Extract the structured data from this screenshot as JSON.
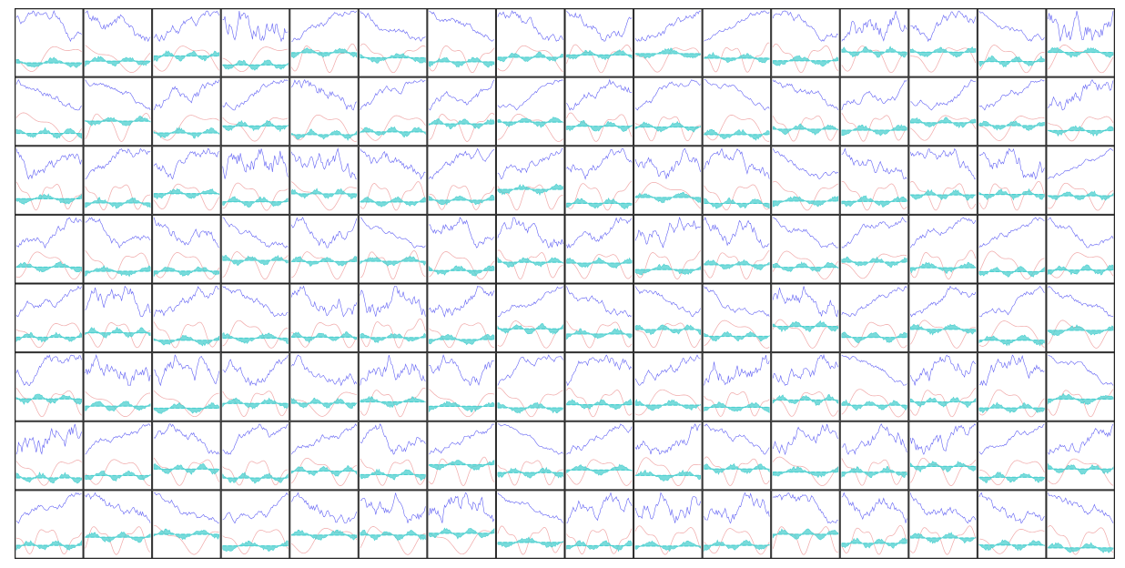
{
  "chart_data": {
    "type": "line",
    "layout": "small-multiples-grid",
    "rows": 8,
    "cols": 16,
    "title": "",
    "xlabel": "",
    "ylabel": "",
    "grid": false,
    "legend": "none",
    "series": [
      {
        "role": "price",
        "mark": "line",
        "color": "#3a3af0"
      },
      {
        "role": "signal",
        "mark": "line",
        "color": "#f0a8a8"
      },
      {
        "role": "histogram",
        "mark": "area",
        "color": "#4ccfcf"
      }
    ],
    "generator": {
      "seed": 73,
      "points_per_panel": 60
    }
  }
}
